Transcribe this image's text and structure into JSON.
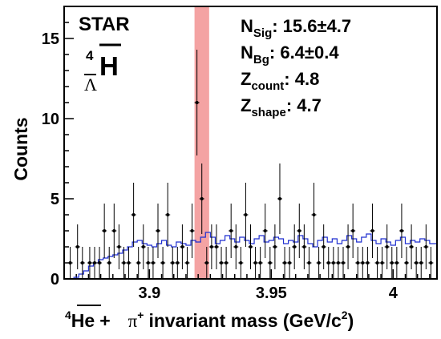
{
  "chart_data": {
    "type": "scatter",
    "experiment_label": "STAR",
    "particle_label": {
      "mass_number": "4",
      "symbol": "H",
      "subscript": "Λ"
    },
    "xlabel": {
      "prefix_sup": "4",
      "nucleus": "He",
      "plus": "+",
      "pion": "π",
      "pion_charge": "+",
      "text": "invariant mass (GeV/c",
      "exp": "2",
      "close": ")"
    },
    "ylabel": "Counts",
    "xlim": [
      3.865,
      4.018
    ],
    "ylim": [
      0,
      17
    ],
    "x_ticks": [
      3.9,
      3.95,
      4
    ],
    "x_tick_labels": [
      "3.9",
      "3.95",
      "4"
    ],
    "y_ticks": [
      0,
      5,
      10,
      15
    ],
    "y_tick_labels": [
      "0",
      "5",
      "10",
      "15"
    ],
    "signal_band": {
      "x_min": 3.9185,
      "x_max": 3.9245,
      "color": "#f4a3a3"
    },
    "stats": [
      {
        "main": "N",
        "sub": "Sig",
        "value": ": 15.6±4.7"
      },
      {
        "main": "N",
        "sub": "Bg",
        "value": ": 6.4±0.4"
      },
      {
        "main": "Z",
        "sub": "count",
        "value": ": 4.8"
      },
      {
        "main": "Z",
        "sub": "shape",
        "value": ": 4.7"
      }
    ],
    "series": [
      {
        "kind": "data_points",
        "color": "#000000",
        "x": [
          3.8675,
          3.8705,
          3.8725,
          3.8755,
          3.8775,
          3.8795,
          3.8815,
          3.8835,
          3.8855,
          3.8875,
          3.8895,
          3.8915,
          3.8935,
          3.8955,
          3.8975,
          3.8995,
          3.9015,
          3.9035,
          3.9055,
          3.9075,
          3.9095,
          3.9115,
          3.9135,
          3.9155,
          3.9175,
          3.9195,
          3.9215,
          3.9235,
          3.9255,
          3.9275,
          3.9295,
          3.9315,
          3.9335,
          3.9355,
          3.9375,
          3.9395,
          3.9415,
          3.9435,
          3.9455,
          3.9475,
          3.9495,
          3.9515,
          3.9535,
          3.9555,
          3.9575,
          3.9595,
          3.9615,
          3.9635,
          3.9655,
          3.9675,
          3.9695,
          3.9715,
          3.9735,
          3.9755,
          3.9775,
          3.9795,
          3.9815,
          3.9835,
          3.9855,
          3.9875,
          3.9895,
          3.9915,
          3.9935,
          3.9955,
          3.9975,
          3.9995,
          4.0015,
          4.0035,
          4.0055,
          4.0075,
          4.0095,
          4.0115,
          4.0135,
          4.0155
        ],
        "y": [
          1,
          2,
          1,
          1,
          1,
          1,
          3,
          1,
          3,
          2,
          1,
          1,
          4,
          1,
          2,
          1,
          1,
          3,
          1,
          4,
          1,
          1,
          2,
          1,
          3,
          11,
          5,
          1,
          2,
          2,
          1,
          1,
          3,
          2,
          1,
          4,
          2,
          1,
          1,
          3,
          1,
          2,
          5,
          1,
          1,
          2,
          3,
          2,
          1,
          4,
          1,
          2,
          1,
          1,
          1,
          1,
          2,
          3,
          1,
          1,
          1,
          3,
          1,
          1,
          2,
          1,
          1,
          3,
          1,
          2,
          1,
          1,
          2,
          1
        ],
        "yerr": [
          1,
          1.4,
          1,
          1,
          1,
          1,
          1.7,
          1,
          1.7,
          1.4,
          1,
          1,
          2,
          1,
          1.4,
          1,
          1,
          1.7,
          1,
          2,
          1,
          1,
          1.4,
          1,
          1.7,
          3.3,
          2.2,
          1,
          1.4,
          1.4,
          1,
          1,
          1.7,
          1.4,
          1,
          2,
          1.4,
          1,
          1,
          1.7,
          1,
          1.4,
          2.2,
          1,
          1,
          1.4,
          1.7,
          1.4,
          1,
          2,
          1,
          1.4,
          1,
          1,
          1,
          1,
          1.4,
          1.7,
          1,
          1,
          1,
          1.7,
          1,
          1,
          1.4,
          1,
          1,
          1.7,
          1,
          1.4,
          1,
          1,
          1.4,
          1
        ]
      },
      {
        "kind": "background_histogram",
        "color": "#1f2fd0",
        "edges": [
          3.865,
          3.867,
          3.869,
          3.871,
          3.873,
          3.875,
          3.877,
          3.879,
          3.881,
          3.883,
          3.885,
          3.887,
          3.889,
          3.891,
          3.893,
          3.895,
          3.897,
          3.899,
          3.901,
          3.903,
          3.905,
          3.907,
          3.909,
          3.911,
          3.913,
          3.915,
          3.917,
          3.919,
          3.921,
          3.923,
          3.925,
          3.927,
          3.929,
          3.931,
          3.933,
          3.935,
          3.937,
          3.939,
          3.941,
          3.943,
          3.945,
          3.947,
          3.949,
          3.951,
          3.953,
          3.955,
          3.957,
          3.959,
          3.961,
          3.963,
          3.965,
          3.967,
          3.969,
          3.971,
          3.973,
          3.975,
          3.977,
          3.979,
          3.981,
          3.983,
          3.985,
          3.987,
          3.989,
          3.991,
          3.993,
          3.995,
          3.997,
          3.999,
          4.001,
          4.003,
          4.005,
          4.007,
          4.009,
          4.011,
          4.013,
          4.015,
          4.018
        ],
        "values": [
          0,
          0,
          0.1,
          0.3,
          0.5,
          0.8,
          1.0,
          1.2,
          1.3,
          1.4,
          1.5,
          1.6,
          1.8,
          2.0,
          2.3,
          2.4,
          2.2,
          2.1,
          2.0,
          2.2,
          2.4,
          2.1,
          2.0,
          2.3,
          2.2,
          2.1,
          2.4,
          2.3,
          2.6,
          2.9,
          2.6,
          2.2,
          2.4,
          2.7,
          2.5,
          2.3,
          2.6,
          2.4,
          2.2,
          2.5,
          2.7,
          2.3,
          2.4,
          2.6,
          2.5,
          2.2,
          2.4,
          2.3,
          2.7,
          2.5,
          2.2,
          2.0,
          2.4,
          2.6,
          2.3,
          2.5,
          2.2,
          2.4,
          2.7,
          2.5,
          2.3,
          2.6,
          2.8,
          2.4,
          2.2,
          2.5,
          2.3,
          2.1,
          2.4,
          2.6,
          2.2,
          2.4,
          2.3,
          2.5,
          2.4,
          2.2
        ]
      }
    ]
  }
}
